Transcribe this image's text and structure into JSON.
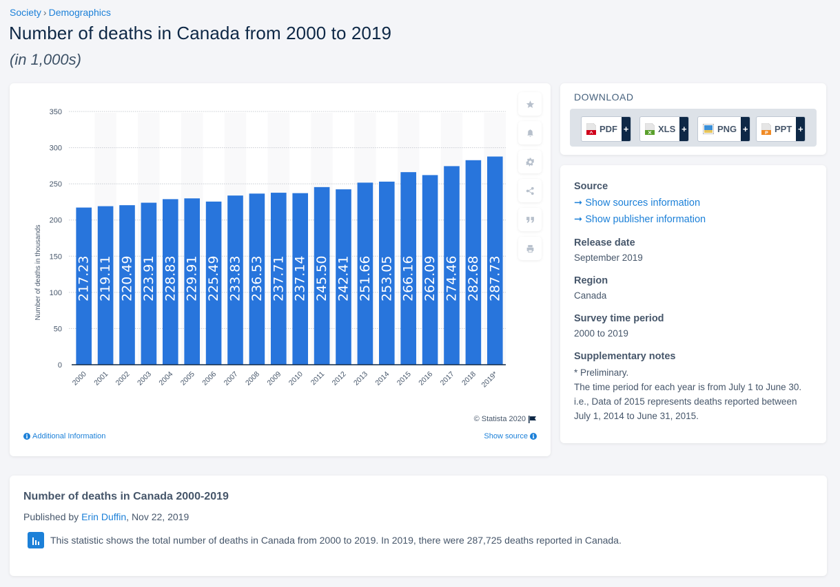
{
  "breadcrumb": {
    "items": [
      "Society",
      "Demographics"
    ],
    "separator": "›"
  },
  "title": "Number of deaths in Canada from 2000 to 2019",
  "subtitle": "(in 1,000s)",
  "chart_toolbar": {
    "buttons": [
      {
        "name": "favorite",
        "icon": "star-icon"
      },
      {
        "name": "notification",
        "icon": "bell-icon"
      },
      {
        "name": "settings",
        "icon": "gear-icon"
      },
      {
        "name": "share",
        "icon": "share-icon"
      },
      {
        "name": "cite",
        "icon": "quote-icon"
      },
      {
        "name": "print",
        "icon": "print-icon"
      }
    ]
  },
  "chart_footer": {
    "copyright": "© Statista 2020",
    "additional_info": "Additional Information",
    "show_source": "Show source"
  },
  "colors": {
    "bar": "#2875dc",
    "accent": "#1c80d8",
    "heading": "#0e2846",
    "muted": "#46566a"
  },
  "chart_data": {
    "type": "bar",
    "title": "Number of deaths in Canada from 2000 to 2019",
    "xlabel": "",
    "ylabel": "Number of deaths in thousands",
    "ylim": [
      0,
      350
    ],
    "yticks": [
      0,
      50,
      100,
      150,
      200,
      250,
      300,
      350
    ],
    "grid": true,
    "legend": "none",
    "categories": [
      "2000",
      "2001",
      "2002",
      "2003",
      "2004",
      "2005",
      "2006",
      "2007",
      "2008",
      "2009",
      "2010",
      "2011",
      "2012",
      "2013",
      "2014",
      "2015",
      "2016",
      "2017",
      "2018",
      "2019*"
    ],
    "values": [
      217.23,
      219.11,
      220.49,
      223.91,
      228.83,
      229.91,
      225.49,
      233.83,
      236.53,
      237.71,
      237.14,
      245.5,
      242.41,
      251.66,
      253.05,
      266.16,
      262.09,
      274.46,
      282.68,
      287.73
    ],
    "data_labels": [
      "217.23",
      "219.11",
      "220.49",
      "223.91",
      "228.83",
      "229.91",
      "225.49",
      "233.83",
      "236.53",
      "237.71",
      "237.14",
      "245.50",
      "242.41",
      "251.66",
      "253.05",
      "266.16",
      "262.09",
      "274.46",
      "282.68",
      "287.73"
    ]
  },
  "download": {
    "title": "DOWNLOAD",
    "formats": [
      {
        "label": "PDF",
        "icon": "pdf-file-icon",
        "color": "#d0021b"
      },
      {
        "label": "XLS",
        "icon": "xls-file-icon",
        "color": "#5aa02c"
      },
      {
        "label": "PNG",
        "icon": "png-file-icon",
        "color": "#3a8fd8"
      },
      {
        "label": "PPT",
        "icon": "ppt-file-icon",
        "color": "#f08a24"
      }
    ],
    "plus": "+"
  },
  "info": {
    "source_heading": "Source",
    "source_link": "Show sources information",
    "publisher_link": "Show publisher information",
    "release_heading": "Release date",
    "release_value": "September 2019",
    "region_heading": "Region",
    "region_value": "Canada",
    "survey_heading": "Survey time period",
    "survey_value": "2000 to 2019",
    "notes_heading": "Supplementary notes",
    "notes_line1": "* Preliminary.",
    "notes_line2": "The time period for each year is from July 1 to June 30. i.e., Data of 2015 represents deaths reported between July 1, 2014 to June 31, 2015."
  },
  "description": {
    "title": "Number of deaths in Canada 2000-2019",
    "published_prefix": "Published by ",
    "author": "Erin Duffin",
    "published_suffix": ", Nov 22, 2019",
    "body": "This statistic shows the total number of deaths in Canada from 2000 to 2019. In 2019, there were 287,725 deaths reported in Canada."
  }
}
